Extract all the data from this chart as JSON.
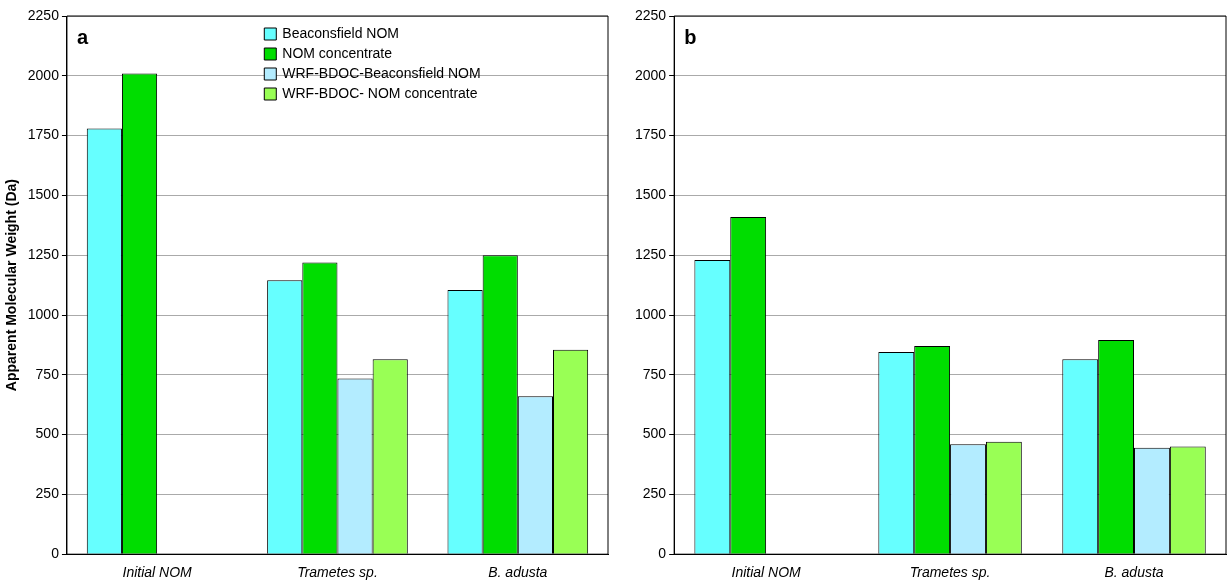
{
  "chart_data": [
    {
      "type": "bar",
      "title": "a",
      "ylabel": "Apparent Molecular Weight (Da)",
      "categories": [
        "Initial NOM",
        "Trametes sp.",
        "B. adusta"
      ],
      "series": [
        {
          "name": "Beaconsfield NOM",
          "color": "#66ffff",
          "values": [
            1780,
            1145,
            1105
          ]
        },
        {
          "name": "NOM concentrate",
          "color": "#00dd00",
          "values": [
            2010,
            1220,
            1250
          ]
        },
        {
          "name": "WRF-BDOC-Beaconsfield NOM",
          "color": "#b3ecff",
          "values": [
            null,
            735,
            660
          ]
        },
        {
          "name": "WRF-BDOC- NOM concentrate",
          "color": "#99ff55",
          "values": [
            null,
            815,
            855
          ]
        }
      ],
      "ylim": [
        0,
        2250
      ],
      "yticks": [
        0,
        250,
        500,
        750,
        1000,
        1250,
        1500,
        1750,
        2000,
        2250
      ],
      "grid": "y",
      "legend": "top"
    },
    {
      "type": "bar",
      "title": "b",
      "categories": [
        "Initial NOM",
        "Trametes sp.",
        "B. adusta"
      ],
      "series": [
        {
          "color": "#66ffff",
          "values": [
            1230,
            845,
            815
          ]
        },
        {
          "color": "#00dd00",
          "values": [
            1410,
            870,
            895
          ]
        },
        {
          "color": "#b3ecff",
          "values": [
            null,
            460,
            445
          ]
        },
        {
          "color": "#99ff55",
          "values": [
            null,
            470,
            450
          ]
        }
      ],
      "ylim": [
        0,
        2250
      ],
      "yticks": [
        0,
        250,
        500,
        750,
        1000,
        1250,
        1500,
        1750,
        2000,
        2250
      ],
      "grid": "y"
    }
  ]
}
